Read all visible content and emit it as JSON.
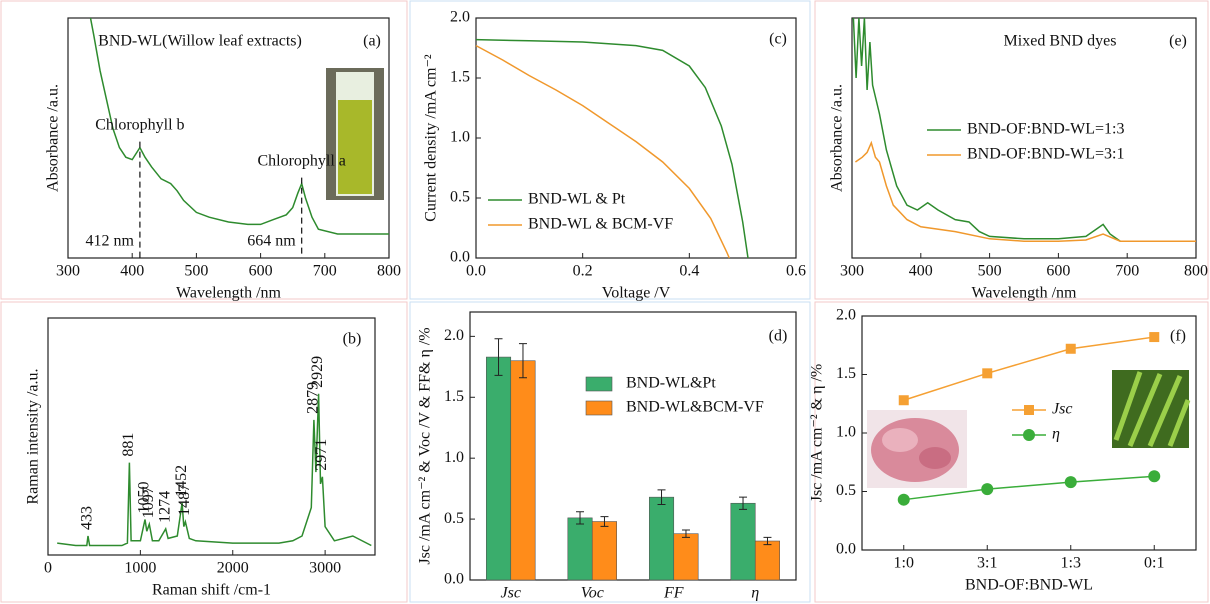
{
  "chart_data": [
    {
      "type": "line",
      "title": "BND-WL(Willow leaf extracts)",
      "panel": "(a)",
      "x_label": "Wavelength /nm",
      "y_label": "Absorbance /a.u.",
      "xlim": [
        300,
        800
      ],
      "xticks": [
        300,
        400,
        500,
        600,
        700,
        800
      ],
      "ylim": [
        0,
        1
      ],
      "color": "#2e8b2e",
      "x": [
        335,
        340,
        350,
        360,
        370,
        380,
        390,
        400,
        412,
        420,
        430,
        445,
        460,
        470,
        480,
        500,
        520,
        550,
        580,
        600,
        620,
        640,
        650,
        658,
        664,
        670,
        680,
        690,
        720,
        760,
        800
      ],
      "values": [
        1.0,
        0.93,
        0.78,
        0.66,
        0.54,
        0.46,
        0.42,
        0.41,
        0.46,
        0.42,
        0.38,
        0.33,
        0.31,
        0.28,
        0.24,
        0.19,
        0.17,
        0.15,
        0.14,
        0.14,
        0.16,
        0.18,
        0.21,
        0.27,
        0.31,
        0.25,
        0.17,
        0.12,
        0.1,
        0.1,
        0.1
      ],
      "annotations": [
        {
          "text": "Chlorophyll b",
          "x": 412,
          "x_label": "412 nm"
        },
        {
          "text": "Chlorophyll a",
          "x": 664,
          "x_label": "664 nm"
        }
      ]
    },
    {
      "type": "line",
      "panel": "(b)",
      "x_label": "Raman shift /cm-1",
      "y_label": "Raman intensity /a.u.",
      "xlim": [
        0,
        3540
      ],
      "xticks": [
        0,
        1000,
        2000,
        3000
      ],
      "ylim": [
        0,
        1
      ],
      "color": "#2e8b2e",
      "x": [
        100,
        300,
        420,
        433,
        450,
        800,
        860,
        881,
        900,
        1000,
        1050,
        1070,
        1097,
        1130,
        1200,
        1274,
        1300,
        1400,
        1452,
        1470,
        1487,
        1530,
        1600,
        2000,
        2500,
        2650,
        2750,
        2850,
        2879,
        2900,
        2929,
        2950,
        2971,
        3000,
        3100,
        3300,
        3500
      ],
      "values": [
        0.05,
        0.04,
        0.04,
        0.08,
        0.04,
        0.04,
        0.05,
        0.39,
        0.06,
        0.06,
        0.15,
        0.1,
        0.13,
        0.06,
        0.06,
        0.11,
        0.07,
        0.08,
        0.22,
        0.12,
        0.14,
        0.07,
        0.06,
        0.05,
        0.05,
        0.06,
        0.08,
        0.2,
        0.57,
        0.35,
        0.68,
        0.3,
        0.33,
        0.12,
        0.06,
        0.08,
        0.04
      ],
      "peak_labels": [
        433,
        881,
        1050,
        1097,
        1274,
        1452,
        1487,
        2879,
        2929,
        2971
      ]
    },
    {
      "type": "line",
      "panel": "(c)",
      "x_label": "Voltage /V",
      "y_label": "Current density /mA cm⁻²",
      "xlim": [
        0,
        0.6
      ],
      "xticks": [
        {
          "value": 0,
          "label": "0.0"
        },
        0.2,
        0.4,
        0.6
      ],
      "ylim": [
        0,
        2
      ],
      "yticks": [
        {
          "value": 0,
          "label": "0.0"
        },
        0.5,
        {
          "value": 1,
          "label": "1.0"
        },
        1.5,
        {
          "value": 2,
          "label": "2.0"
        }
      ],
      "legend": "lower left",
      "series": [
        {
          "name": "BND-WL & Pt",
          "color": "#2e8b2e",
          "x": [
            0,
            0.1,
            0.2,
            0.3,
            0.35,
            0.4,
            0.43,
            0.46,
            0.48,
            0.5,
            0.51
          ],
          "values": [
            1.82,
            1.81,
            1.8,
            1.77,
            1.73,
            1.6,
            1.42,
            1.1,
            0.78,
            0.3,
            0
          ]
        },
        {
          "name": "BND-WL & BCM-VF",
          "color": "#f0982c",
          "x": [
            0,
            0.05,
            0.1,
            0.15,
            0.2,
            0.25,
            0.3,
            0.35,
            0.4,
            0.44,
            0.47,
            0.475
          ],
          "values": [
            1.77,
            1.65,
            1.52,
            1.4,
            1.27,
            1.12,
            0.97,
            0.8,
            0.58,
            0.33,
            0.05,
            0
          ]
        }
      ]
    },
    {
      "type": "bar",
      "panel": "(d)",
      "y_label": "Jsc /mA cm⁻² & Voc /V & FF& η /%",
      "categories": [
        "Jsc",
        "Voc",
        "FF",
        "η"
      ],
      "ylim": [
        0,
        2.2
      ],
      "yticks": [
        {
          "value": 0,
          "label": "0.0"
        },
        0.5,
        {
          "value": 1,
          "label": "1.0"
        },
        1.5,
        {
          "value": 2,
          "label": "2.0"
        }
      ],
      "legend": "upper right",
      "series": [
        {
          "name": "BND-WL&Pt",
          "color": "#3aad6c",
          "values": [
            1.83,
            0.51,
            0.68,
            0.63
          ],
          "errors": [
            0.15,
            0.05,
            0.06,
            0.05
          ]
        },
        {
          "name": "BND-WL&BCM-VF",
          "color": "#ff8c1a",
          "values": [
            1.8,
            0.48,
            0.38,
            0.32
          ],
          "errors": [
            0.14,
            0.04,
            0.03,
            0.03
          ]
        }
      ]
    },
    {
      "type": "line",
      "title": "Mixed BND dyes",
      "panel": "(e)",
      "x_label": "Wavelength /nm",
      "y_label": "Absorbance /a.u.",
      "xlim": [
        300,
        800
      ],
      "xticks": [
        300,
        400,
        500,
        600,
        700,
        800
      ],
      "ylim": [
        0,
        1
      ],
      "legend": "center left",
      "series": [
        {
          "name": "BND-OF:BND-WL=1:3",
          "color": "#2e8b2e",
          "x": [
            302,
            306,
            310,
            314,
            318,
            322,
            326,
            330,
            340,
            350,
            365,
            380,
            395,
            410,
            425,
            450,
            470,
            485,
            500,
            550,
            600,
            640,
            655,
            665,
            675,
            690,
            800
          ],
          "values": [
            1.0,
            0.75,
            1.0,
            0.8,
            1.0,
            0.7,
            0.9,
            0.72,
            0.6,
            0.45,
            0.3,
            0.22,
            0.2,
            0.23,
            0.2,
            0.16,
            0.15,
            0.11,
            0.09,
            0.08,
            0.08,
            0.09,
            0.12,
            0.14,
            0.1,
            0.07,
            0.07
          ]
        },
        {
          "name": "BND-OF:BND-WL=3:1",
          "color": "#f0982c",
          "x": [
            305,
            315,
            322,
            328,
            334,
            340,
            350,
            360,
            380,
            400,
            450,
            500,
            550,
            600,
            640,
            665,
            690,
            800
          ],
          "values": [
            0.4,
            0.42,
            0.44,
            0.48,
            0.42,
            0.4,
            0.3,
            0.22,
            0.16,
            0.13,
            0.11,
            0.08,
            0.07,
            0.07,
            0.075,
            0.1,
            0.07,
            0.07
          ]
        }
      ]
    },
    {
      "type": "line",
      "panel": "(f)",
      "x_label": "BND-OF:BND-WL",
      "y_label": "Jsc /mA cm⁻² & η /%",
      "categories": [
        "1:0",
        "3:1",
        "1:3",
        "0:1"
      ],
      "ylim": [
        0,
        2
      ],
      "yticks": [
        {
          "value": 0,
          "label": "0.0"
        },
        0.5,
        {
          "value": 1,
          "label": "1.0"
        },
        1.5,
        {
          "value": 2,
          "label": "2.0"
        }
      ],
      "legend": "center",
      "series": [
        {
          "name": "Jsc",
          "color": "#f5a033",
          "marker": "square",
          "values": [
            1.28,
            1.51,
            1.72,
            1.82
          ]
        },
        {
          "name": "η",
          "color": "#3aad3a",
          "marker": "circle",
          "values": [
            0.43,
            0.52,
            0.58,
            0.63
          ]
        }
      ]
    }
  ]
}
